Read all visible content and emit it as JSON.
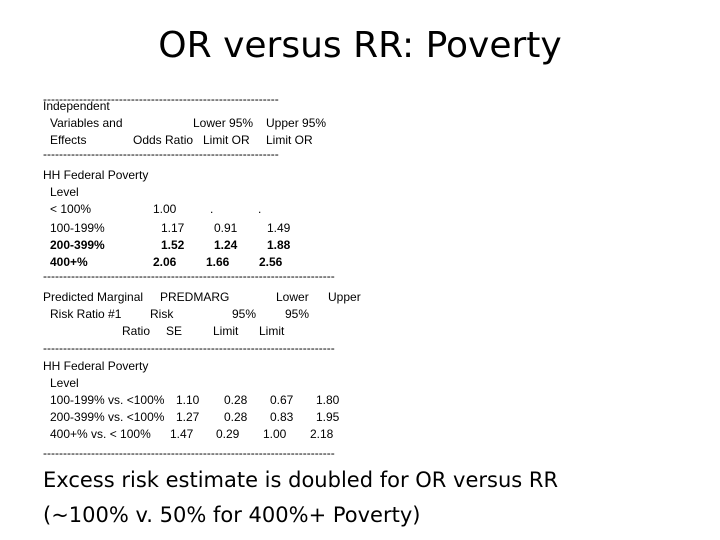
{
  "title": "OR versus RR: Poverty",
  "dash_line": "--------------------------------------------------------------------------------------------------------------------------------",
  "table1": {
    "header": {
      "col1": [
        "Independent",
        "Variables and",
        "Effects"
      ],
      "odds_ratio": "Odds Ratio",
      "lower": [
        "Lower 95%",
        "Limit OR"
      ],
      "upper": [
        "Upper 95%",
        "Limit OR"
      ]
    },
    "group": "HH Federal Poverty",
    "sublabel": "Level",
    "rows": [
      {
        "label": "< 100%",
        "or": "1.00",
        "lower": ".",
        "upper": "."
      },
      {
        "label": "100-199%",
        "or": "1.17",
        "lower": "0.91",
        "upper": "1.49"
      },
      {
        "label": "200-399%",
        "or": "1.52",
        "lower": "1.24",
        "upper": "1.88"
      },
      {
        "label": "400+%",
        "or": "2.06",
        "lower": "1.66",
        "upper": "2.56"
      }
    ]
  },
  "table2": {
    "header": {
      "line1": [
        "Predicted Marginal",
        "PREDMARG",
        "Lower",
        "Upper"
      ],
      "line2": [
        "Risk Ratio #1",
        "Risk",
        "95%",
        "95%"
      ],
      "line3": [
        "Ratio",
        "SE",
        "Limit",
        "Limit"
      ]
    },
    "group": "HH Federal Poverty",
    "sublabel": "Level",
    "rows": [
      {
        "label": "100-199% vs. <100%",
        "ratio": "1.10",
        "se": "0.28",
        "lower": "0.67",
        "upper": "1.80"
      },
      {
        "label": "200-399% vs. <100%",
        "ratio": "1.27",
        "se": "0.28",
        "lower": "0.83",
        "upper": "1.95"
      },
      {
        "label": "400+% vs. < 100%",
        "ratio": "1.47",
        "se": "0.29",
        "lower": "1.00",
        "upper": "2.18"
      }
    ]
  },
  "footer": {
    "line1": "Excess risk estimate is doubled for OR versus RR",
    "line2": "(~100% v. 50% for 400%+ Poverty)"
  }
}
